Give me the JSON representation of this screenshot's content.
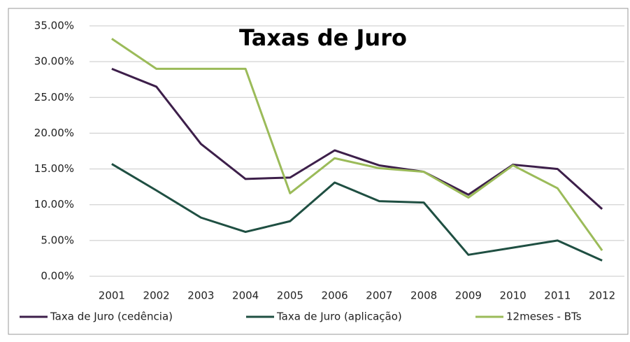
{
  "chart_data": {
    "type": "line",
    "title": "Taxas de Juro",
    "categories": [
      "2001",
      "2002",
      "2003",
      "2004",
      "2005",
      "2006",
      "2007",
      "2008",
      "2009",
      "2010",
      "2011",
      "2012"
    ],
    "series": [
      {
        "name": "Taxa de Juro (cedência)",
        "color": "#3d1f4a",
        "values": [
          29.0,
          26.5,
          18.5,
          13.6,
          13.8,
          17.6,
          15.5,
          14.6,
          11.4,
          15.6,
          15.0,
          9.4
        ]
      },
      {
        "name": "Taxa de Juro (aplicação)",
        "color": "#1f4f42",
        "values": [
          15.7,
          12.0,
          8.2,
          6.2,
          7.7,
          13.1,
          10.5,
          10.3,
          3.0,
          4.0,
          5.0,
          2.2
        ]
      },
      {
        "name": "12meses - BTs",
        "color": "#9bbb59",
        "values": [
          33.2,
          29.0,
          29.0,
          29.0,
          11.6,
          16.5,
          15.1,
          14.6,
          11.0,
          15.5,
          12.3,
          3.6
        ]
      }
    ],
    "ylim": [
      0,
      35
    ],
    "yticks": [
      {
        "value": 0,
        "label": "0.00%"
      },
      {
        "value": 5,
        "label": "5.00%"
      },
      {
        "value": 10,
        "label": "10.00%"
      },
      {
        "value": 15,
        "label": "15.00%"
      },
      {
        "value": 20,
        "label": "20.00%"
      },
      {
        "value": 25,
        "label": "25.00%"
      },
      {
        "value": 30,
        "label": "30.00%"
      },
      {
        "value": 35,
        "label": "35.00%"
      }
    ],
    "grid": true,
    "legend": "bottom"
  }
}
